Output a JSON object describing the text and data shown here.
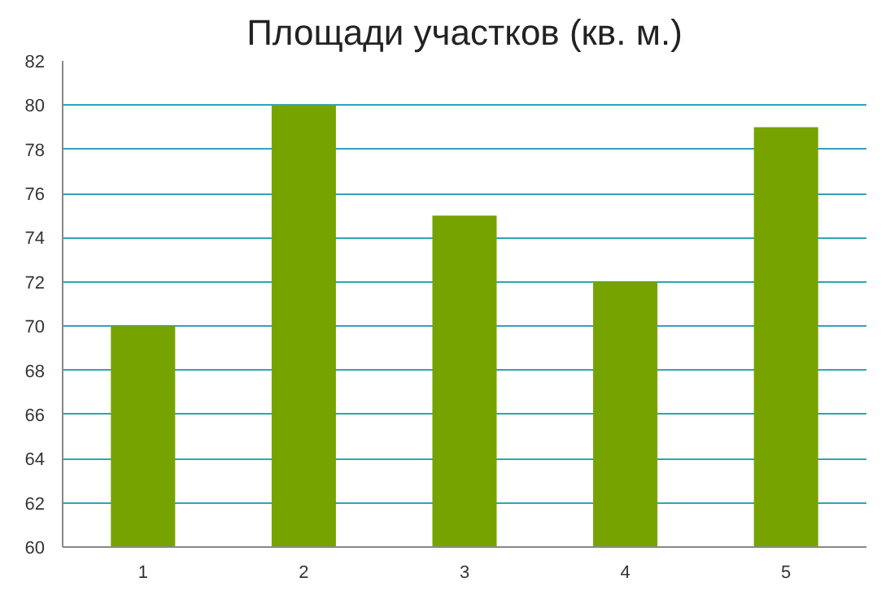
{
  "chart_data": {
    "type": "bar",
    "title": "Площади участков (кв. м.)",
    "categories": [
      "1",
      "2",
      "3",
      "4",
      "5"
    ],
    "values": [
      70,
      80,
      75,
      72,
      79
    ],
    "color": "#77a300",
    "ylim": [
      60,
      82
    ],
    "yticks": [
      60,
      62,
      64,
      66,
      68,
      70,
      72,
      74,
      76,
      78,
      80,
      82
    ],
    "grid": "y"
  }
}
